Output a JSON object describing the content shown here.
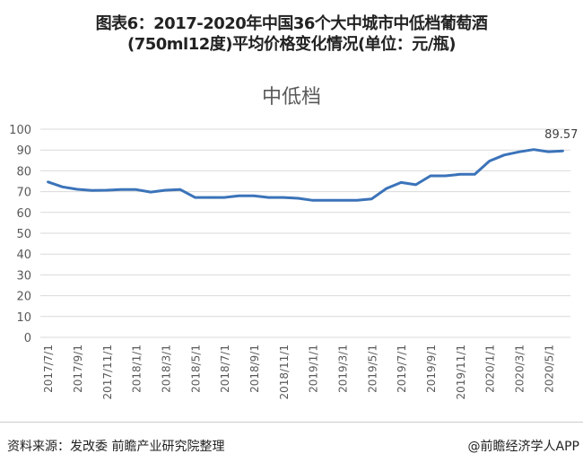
{
  "header": {
    "title_line1": "图表6：2017-2020年中国36个大中城市中低档葡萄酒",
    "title_line2": "(750ml12度)平均价格变化情况(单位：元/瓶)"
  },
  "chart_data": {
    "type": "line",
    "title": "中低档",
    "x": [
      "2017/7/1",
      "2017/8/1",
      "2017/9/1",
      "2017/10/1",
      "2017/11/1",
      "2017/12/1",
      "2018/1/1",
      "2018/2/1",
      "2018/3/1",
      "2018/4/1",
      "2018/5/1",
      "2018/6/1",
      "2018/7/1",
      "2018/8/1",
      "2018/9/1",
      "2018/10/1",
      "2018/11/1",
      "2018/12/1",
      "2019/1/1",
      "2019/2/1",
      "2019/3/1",
      "2019/4/1",
      "2019/5/1",
      "2019/6/1",
      "2019/7/1",
      "2019/8/1",
      "2019/9/1",
      "2019/10/1",
      "2019/11/1",
      "2019/12/1",
      "2020/1/1",
      "2020/2/1",
      "2020/3/1",
      "2020/4/1",
      "2020/5/1",
      "2020/6/1"
    ],
    "tick_labels": [
      "2017/7/1",
      "2017/9/1",
      "2017/11/1",
      "2018/1/1",
      "2018/3/1",
      "2018/5/1",
      "2018/7/1",
      "2018/9/1",
      "2018/11/1",
      "2019/1/1",
      "2019/3/1",
      "2019/5/1",
      "2019/7/1",
      "2019/9/1",
      "2019/11/1",
      "2020/1/1",
      "2020/3/1",
      "2020/5/1"
    ],
    "values": [
      74.7,
      72.3,
      71.1,
      70.6,
      70.7,
      71.0,
      71.0,
      69.8,
      70.7,
      71.0,
      67.2,
      67.2,
      67.2,
      68.0,
      68.0,
      67.2,
      67.2,
      66.8,
      65.8,
      65.8,
      65.8,
      65.8,
      66.5,
      71.5,
      74.4,
      73.3,
      77.6,
      77.6,
      78.3,
      78.3,
      84.7,
      87.6,
      89.1,
      90.2,
      89.2,
      89.57
    ],
    "data_label": "89.57",
    "yticks": [
      "0",
      "10",
      "20",
      "30",
      "40",
      "50",
      "60",
      "70",
      "80",
      "90",
      "100"
    ],
    "ylim": [
      0,
      100
    ],
    "grid": true,
    "color": "#3b73b9"
  },
  "footer": {
    "source": "资料来源：发改委 前瞻产业研究院整理",
    "brand": "@前瞻经济学人APP"
  }
}
